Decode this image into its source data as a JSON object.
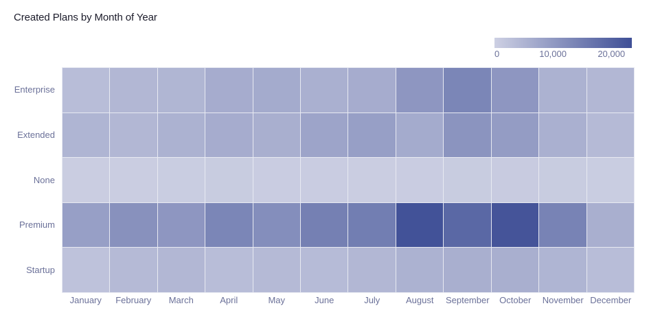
{
  "chart_data": {
    "type": "heatmap",
    "title": "Created Plans by Month of Year",
    "xlabel": "",
    "ylabel": "",
    "categories": [
      "January",
      "February",
      "March",
      "April",
      "May",
      "June",
      "July",
      "August",
      "September",
      "October",
      "November",
      "December"
    ],
    "rows": [
      "Enterprise",
      "Extended",
      "None",
      "Premium",
      "Startup"
    ],
    "values": [
      [
        3500,
        4500,
        4800,
        6500,
        6800,
        5800,
        6500,
        10500,
        13500,
        10500,
        5500,
        4500
      ],
      [
        5000,
        4500,
        5500,
        6500,
        6000,
        8000,
        9000,
        6800,
        11000,
        9500,
        5800,
        4000
      ],
      [
        500,
        500,
        600,
        800,
        700,
        700,
        500,
        700,
        800,
        900,
        800,
        600
      ],
      [
        9000,
        11500,
        10500,
        13500,
        12000,
        14500,
        15000,
        23000,
        19000,
        22500,
        14000,
        6000
      ],
      [
        2500,
        4000,
        4500,
        3500,
        4000,
        3800,
        4500,
        5500,
        6000,
        6000,
        5000,
        3500
      ]
    ],
    "colorscale": {
      "min": 0,
      "max": 23500,
      "min_color": "#cdd0e3",
      "max_color": "#3f4f96",
      "ticks": [
        0,
        10000,
        20000
      ],
      "tick_labels": [
        "0",
        "10,000",
        "20,000"
      ]
    }
  }
}
